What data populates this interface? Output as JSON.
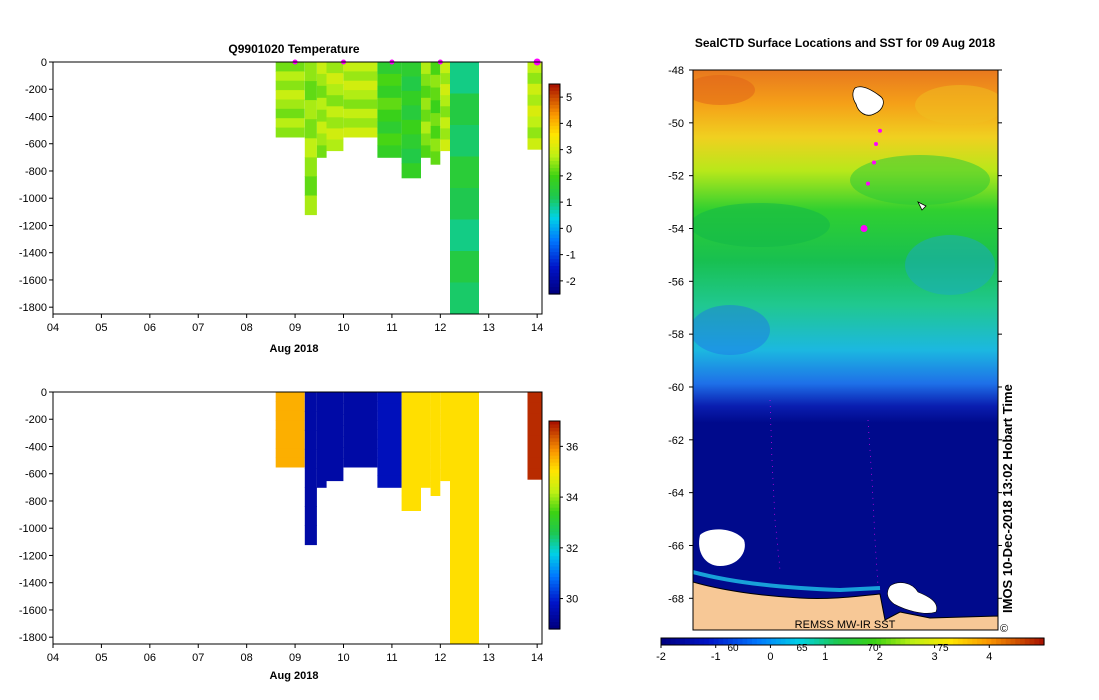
{
  "chart_data": [
    {
      "type": "heatmap",
      "title": "Q9901020  Temperature",
      "xlabel": "Aug 2018",
      "x_ticks": [
        "04",
        "05",
        "06",
        "07",
        "08",
        "09",
        "10",
        "11",
        "12",
        "13",
        "14"
      ],
      "y_ticks": [
        0,
        -200,
        -400,
        -600,
        -800,
        -1000,
        -1200,
        -1400,
        -1600,
        -1800
      ],
      "ylim": [
        -1850,
        0
      ],
      "xlim": [
        4,
        14.1
      ],
      "colorbar": {
        "range": [
          -2.5,
          5.5
        ],
        "ticks": [
          5,
          4,
          3,
          2,
          1,
          0,
          -1,
          -2
        ]
      },
      "profiles": [
        {
          "x0": 8.6,
          "x1": 9.2,
          "depth": 550,
          "value": 2.6
        },
        {
          "x0": 9.2,
          "x1": 9.45,
          "depth": 1120,
          "value": 2.5
        },
        {
          "x0": 9.45,
          "x1": 9.65,
          "depth": 700,
          "value": 2.6
        },
        {
          "x0": 9.65,
          "x1": 10.0,
          "depth": 650,
          "value": 2.7
        },
        {
          "x0": 10.0,
          "x1": 10.7,
          "depth": 550,
          "value": 2.7
        },
        {
          "x0": 10.7,
          "x1": 11.2,
          "depth": 700,
          "value": 1.9
        },
        {
          "x0": 11.2,
          "x1": 11.6,
          "depth": 850,
          "value": 1.6
        },
        {
          "x0": 11.6,
          "x1": 11.8,
          "depth": 700,
          "value": 2.4
        },
        {
          "x0": 11.8,
          "x1": 12.0,
          "depth": 750,
          "value": 2.2
        },
        {
          "x0": 12.0,
          "x1": 12.2,
          "depth": 650,
          "value": 2.7
        },
        {
          "x0": 12.2,
          "x1": 12.8,
          "depth": 1850,
          "value": 1.2
        },
        {
          "x0": 13.8,
          "x1": 14.1,
          "depth": 640,
          "value": 2.8
        }
      ],
      "markers_x": [
        9.0,
        10.0,
        11.0,
        12.0,
        14.0
      ]
    },
    {
      "type": "heatmap",
      "title": "",
      "xlabel": "Aug 2018",
      "x_ticks": [
        "04",
        "05",
        "06",
        "07",
        "08",
        "09",
        "10",
        "11",
        "12",
        "13",
        "14"
      ],
      "y_ticks": [
        0,
        -200,
        -400,
        -600,
        -800,
        -1000,
        -1200,
        -1400,
        -1600,
        -1800
      ],
      "ylim": [
        -1850,
        0
      ],
      "xlim": [
        4,
        14.1
      ],
      "colorbar": {
        "range": [
          28.8,
          37.0
        ],
        "ticks": [
          36,
          34,
          32,
          30
        ]
      },
      "profiles": [
        {
          "x0": 8.6,
          "x1": 9.2,
          "depth": 550,
          "value": 35.6
        },
        {
          "x0": 9.2,
          "x1": 9.45,
          "depth": 1120,
          "value": 29.3
        },
        {
          "x0": 9.45,
          "x1": 9.65,
          "depth": 700,
          "value": 29.3
        },
        {
          "x0": 9.65,
          "x1": 10.0,
          "depth": 650,
          "value": 29.3
        },
        {
          "x0": 10.0,
          "x1": 10.7,
          "depth": 550,
          "value": 29.3
        },
        {
          "x0": 10.7,
          "x1": 11.2,
          "depth": 700,
          "value": 29.6
        },
        {
          "x0": 11.2,
          "x1": 11.6,
          "depth": 870,
          "value": 35.1
        },
        {
          "x0": 11.6,
          "x1": 11.8,
          "depth": 700,
          "value": 35.1
        },
        {
          "x0": 11.8,
          "x1": 12.0,
          "depth": 760,
          "value": 35.1
        },
        {
          "x0": 12.0,
          "x1": 12.2,
          "depth": 650,
          "value": 35.1
        },
        {
          "x0": 12.2,
          "x1": 12.8,
          "depth": 1850,
          "value": 35.1
        },
        {
          "x0": 13.8,
          "x1": 14.1,
          "depth": 640,
          "value": 36.8
        }
      ]
    },
    {
      "type": "heatmap",
      "title": "SealCTD Surface Locations and SST for 09 Aug 2018",
      "y_ticks": [
        -48,
        -50,
        -52,
        -54,
        -56,
        -58,
        -60,
        -62,
        -64,
        -66,
        -68
      ],
      "ylim": [
        -69.2,
        -48
      ],
      "colorbar": {
        "range": [
          -2,
          5
        ],
        "ticks": [
          "-2",
          "-1",
          "0",
          "1",
          "2",
          "3",
          "4"
        ],
        "overlay_ticks": [
          "60",
          "65",
          "70",
          "75"
        ]
      },
      "footer": "REMSS MW-IR SST",
      "side_text": "IMOS 10-Dec-2018 13:02 Hobart Time",
      "copyright": "©",
      "track_lat": [
        -50.3,
        -50.8,
        -51.5,
        -52.3
      ],
      "current_lat": -54.0
    }
  ],
  "colors": {
    "deep_blue": "#000a8c",
    "land": "#f7c896",
    "marker": "#ff00ff"
  }
}
